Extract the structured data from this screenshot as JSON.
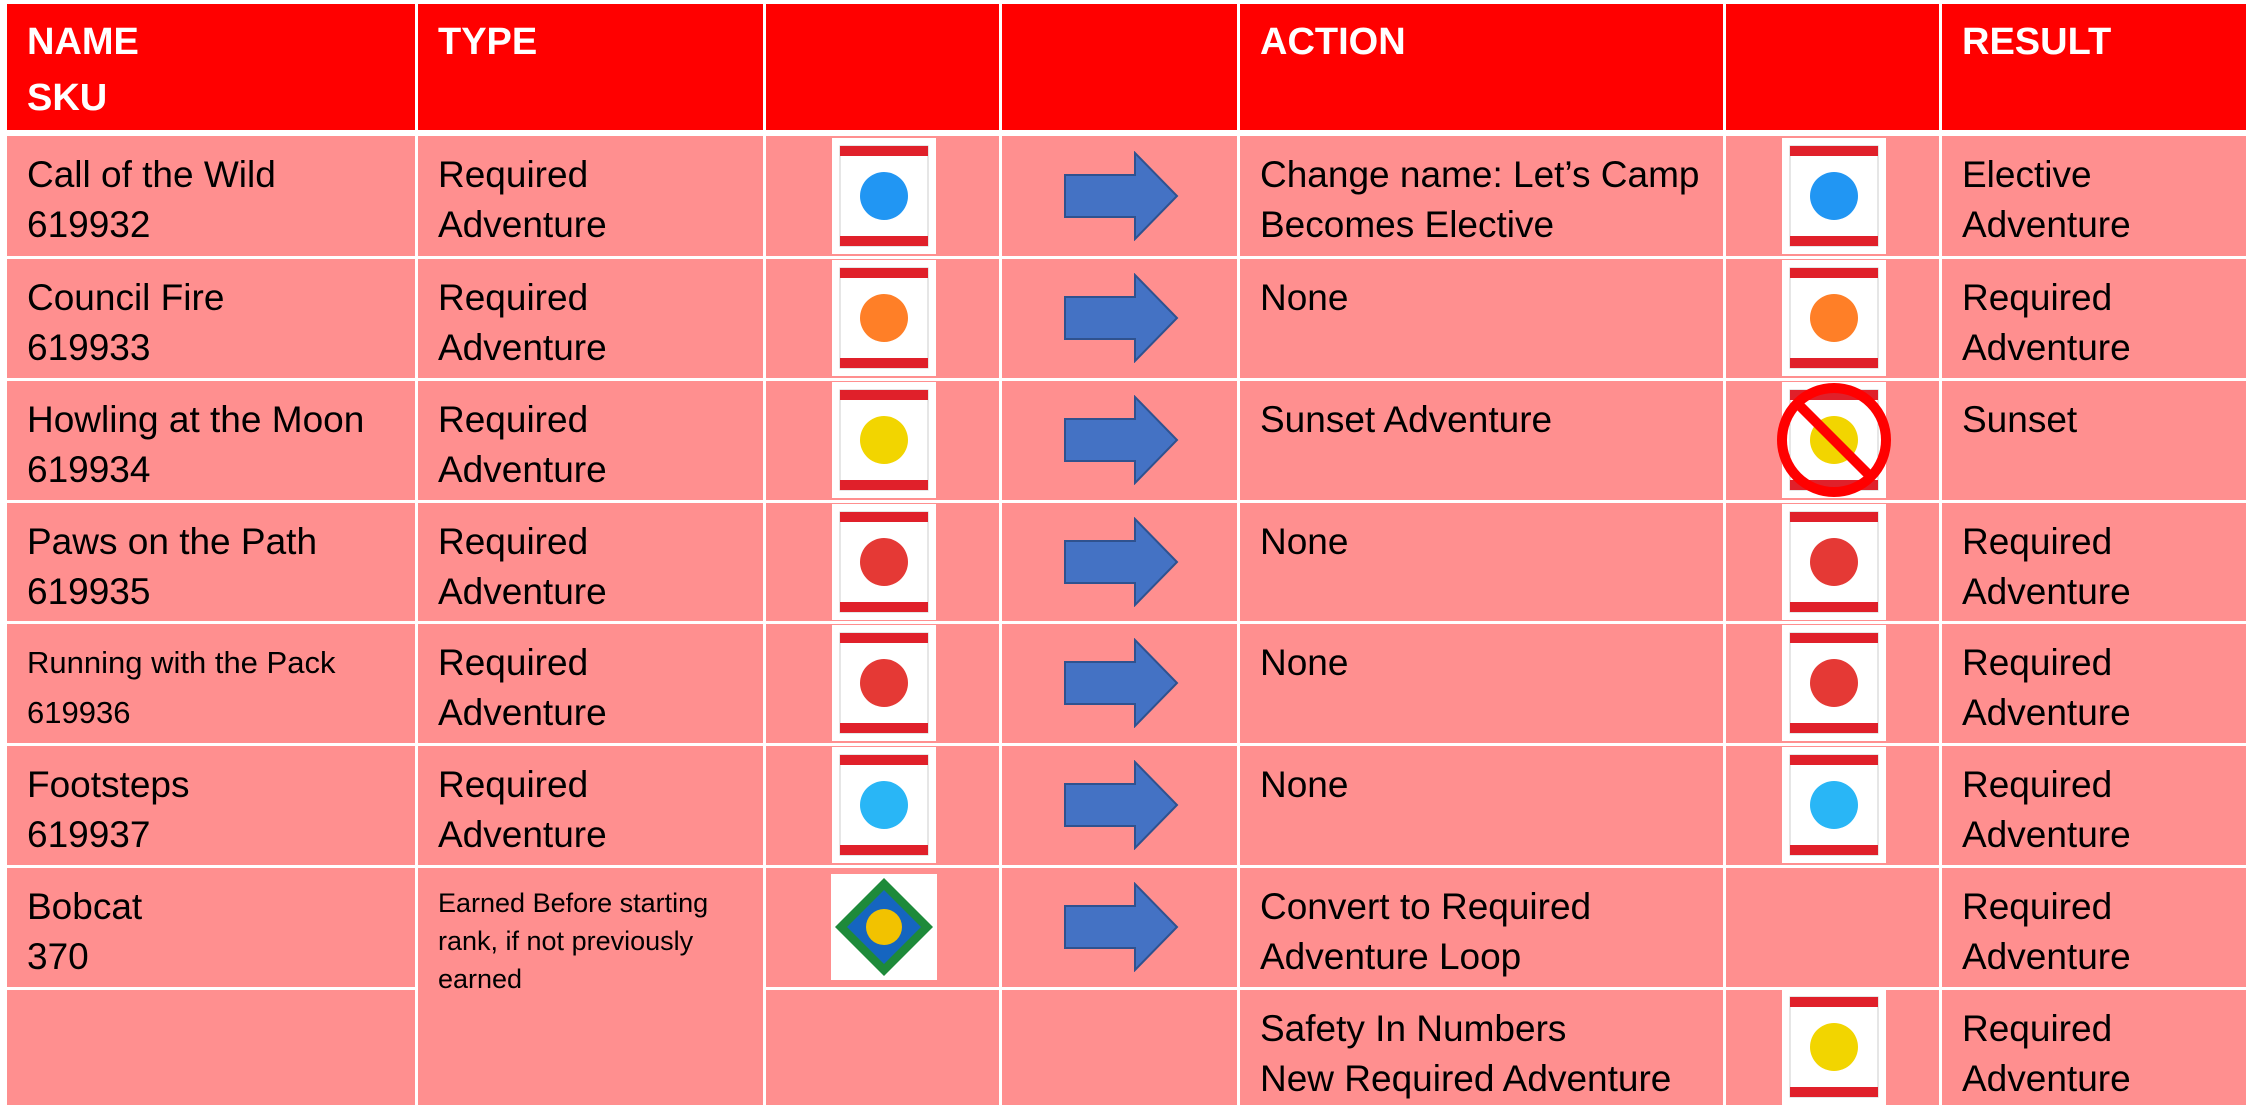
{
  "header": {
    "name": "NAME",
    "sku": "SKU",
    "type": "TYPE",
    "action": "ACTION",
    "result": "RESULT"
  },
  "rows": [
    {
      "name": "Call of the Wild",
      "sku": "619932",
      "type": [
        "Required",
        "Adventure"
      ],
      "action": [
        "Change name: Let’s Camp",
        "Becomes Elective"
      ],
      "result": [
        "Elective",
        "Adventure"
      ]
    },
    {
      "name": "Council Fire",
      "sku": "619933",
      "type": [
        "Required",
        "Adventure"
      ],
      "action": [
        "None"
      ],
      "result": [
        "Required",
        "Adventure"
      ]
    },
    {
      "name": "Howling at the Moon",
      "sku": "619934",
      "type": [
        "Required",
        "Adventure"
      ],
      "action": [
        "Sunset Adventure"
      ],
      "result": [
        "Sunset"
      ]
    },
    {
      "name": "Paws on the Path",
      "sku": "619935",
      "type": [
        "Required",
        "Adventure"
      ],
      "action": [
        "None"
      ],
      "result": [
        "Required",
        "Adventure"
      ]
    },
    {
      "name": "Running with the Pack",
      "sku": "619936",
      "type": [
        "Required",
        "Adventure"
      ],
      "action": [
        "None"
      ],
      "result": [
        "Required",
        "Adventure"
      ]
    },
    {
      "name": "Footsteps",
      "sku": "619937",
      "type": [
        "Required",
        "Adventure"
      ],
      "action": [
        "None"
      ],
      "result": [
        "Required",
        "Adventure"
      ]
    },
    {
      "name": "Bobcat",
      "sku": "370",
      "type": [
        "Earned Before starting",
        "rank, if not previously",
        "earned"
      ],
      "action": [
        "Convert to Required",
        "Adventure Loop"
      ],
      "result": [
        "Required",
        "Adventure"
      ]
    },
    {
      "action": [
        "Safety In Numbers",
        "New Required Adventure"
      ],
      "result": [
        "Required",
        "Adventure"
      ]
    }
  ]
}
